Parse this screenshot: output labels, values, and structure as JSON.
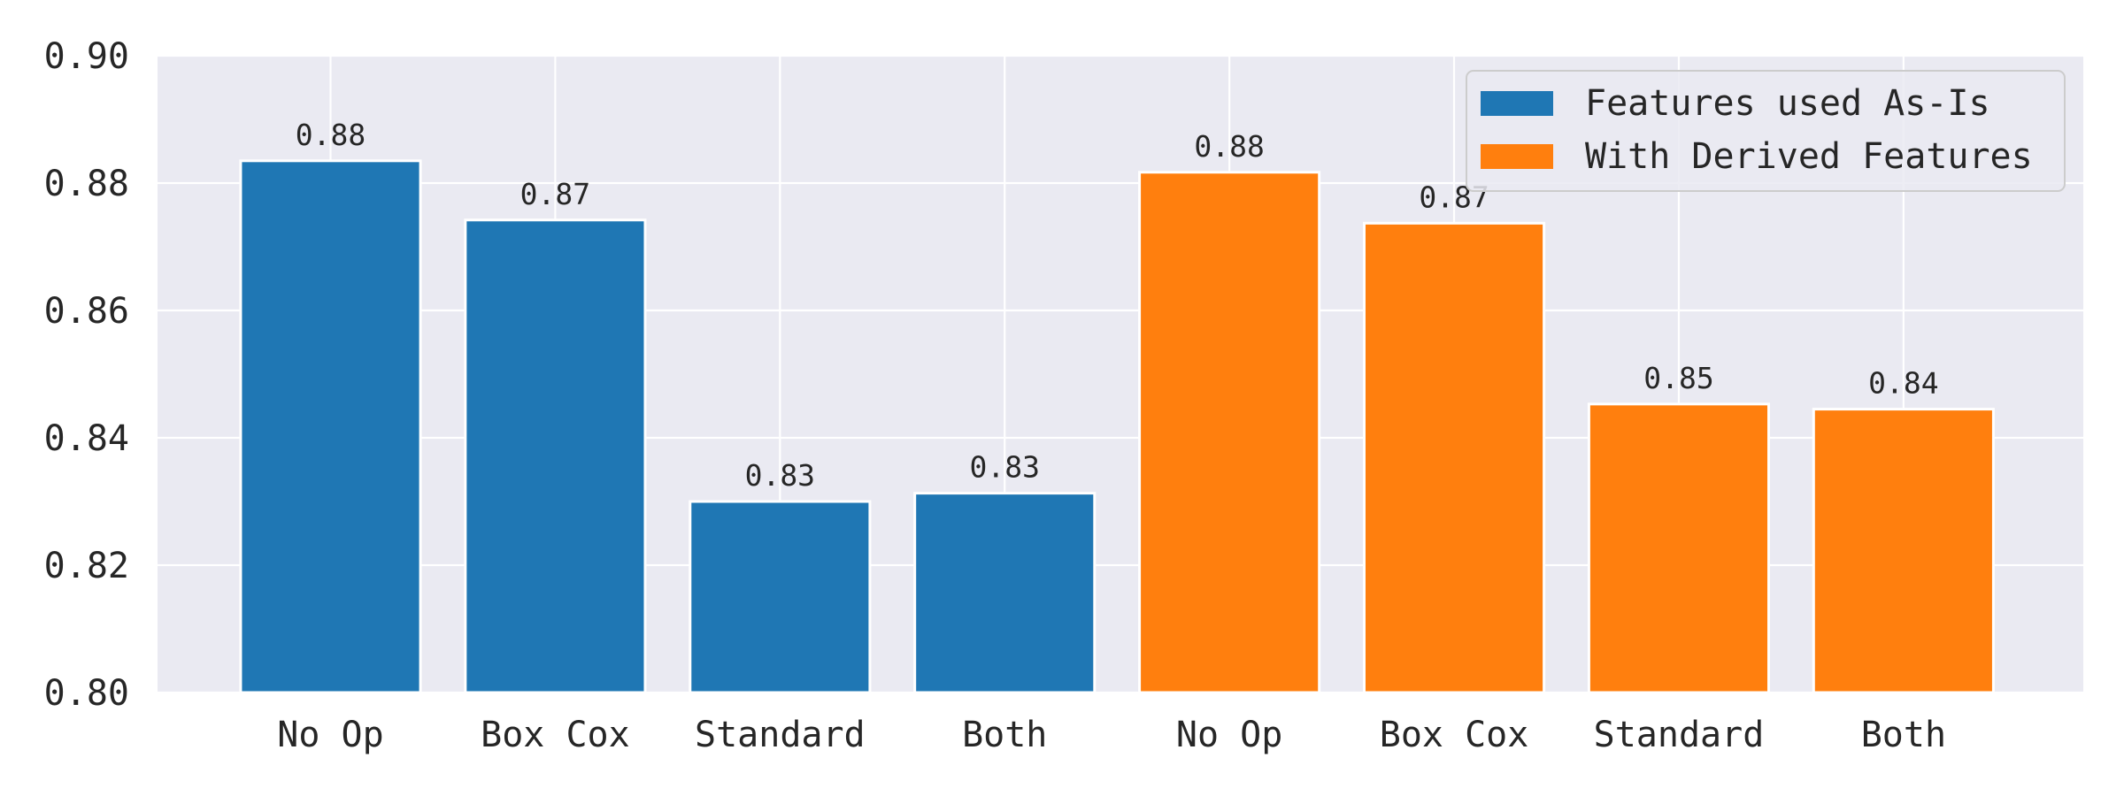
{
  "chart_data": {
    "type": "bar",
    "title": "",
    "xlabel": "",
    "ylabel": "",
    "ylim": [
      0.8,
      0.9
    ],
    "yticks": [
      0.8,
      0.82,
      0.84,
      0.86,
      0.88,
      0.9
    ],
    "ytick_labels": [
      "0.80",
      "0.82",
      "0.84",
      "0.86",
      "0.88",
      "0.90"
    ],
    "grid": true,
    "legend_placement": "top-right",
    "categories": [
      "No Op",
      "Box Cox",
      "Standard",
      "Both",
      "No Op",
      "Box Cox",
      "Standard",
      "Both"
    ],
    "series": [
      {
        "name": "Features used As-Is",
        "color": "#1f77b4",
        "positions": [
          0,
          1,
          2,
          3
        ],
        "values": [
          0.8835,
          0.8742,
          0.83,
          0.8313
        ],
        "labels": [
          "0.88",
          "0.87",
          "0.83",
          "0.83"
        ]
      },
      {
        "name": "With Derived Features",
        "color": "#ff7f0e",
        "positions": [
          4,
          5,
          6,
          7
        ],
        "values": [
          0.8817,
          0.8737,
          0.8453,
          0.8445
        ],
        "labels": [
          "0.88",
          "0.87",
          "0.85",
          "0.84"
        ]
      }
    ],
    "background_color": "#eaeaf2",
    "grid_color": "#ffffff"
  }
}
